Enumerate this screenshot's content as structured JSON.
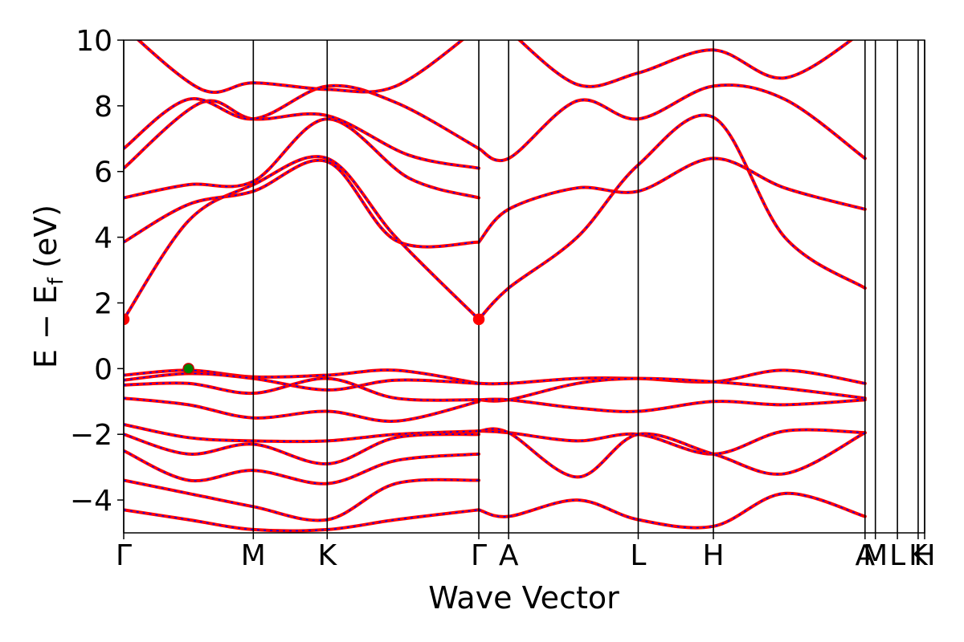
{
  "chart_data": {
    "type": "line",
    "xlabel": "Wave Vector",
    "ylabel": "E − E_f (eV)",
    "ylabel_main": "E − E",
    "ylabel_sub": "f",
    "ylabel_unit": " (eV)",
    "ylim": [
      -5,
      10
    ],
    "yticks": [
      -4,
      -2,
      0,
      2,
      4,
      6,
      8,
      10
    ],
    "ytick_labels": [
      "−4",
      "−2",
      "0",
      "2",
      "4",
      "6",
      "8",
      "10"
    ],
    "xlim": [
      0,
      6.18
    ],
    "kpoints": [
      {
        "label": "Γ",
        "x": 0.0
      },
      {
        "label": "M",
        "x": 1.0
      },
      {
        "label": "K",
        "x": 1.57
      },
      {
        "label": "Γ",
        "x": 2.74
      },
      {
        "label": "A",
        "x": 2.97
      },
      {
        "label": "L",
        "x": 3.97
      },
      {
        "label": "H",
        "x": 4.55
      },
      {
        "label": "A",
        "x": 5.72
      },
      {
        "label": "M",
        "x": 5.8
      },
      {
        "label": "L",
        "x": 5.97
      },
      {
        "label": "K",
        "x": 6.13
      },
      {
        "label": "H",
        "x": 6.18
      }
    ],
    "colors": {
      "band": "#ff0000",
      "band_dash": "#0000ff",
      "vline": "#000000",
      "cbm": "#ff0000",
      "vbm": "#008000"
    },
    "markers": [
      {
        "name": "cbm",
        "x": 0.0,
        "y": 1.5,
        "color": "#ff0000"
      },
      {
        "name": "cbm",
        "x": 2.74,
        "y": 1.5,
        "color": "#ff0000"
      },
      {
        "name": "vbm",
        "x": 0.5,
        "y": 0.0,
        "color": "#008000"
      }
    ],
    "series": [
      {
        "x": [
          0,
          0.5,
          1.0,
          1.57,
          2.1,
          2.74
        ],
        "y": [
          1.5,
          4.5,
          5.6,
          6.4,
          4.0,
          1.5
        ]
      },
      {
        "x": [
          0,
          0.5,
          1.0,
          1.57,
          2.1,
          2.74
        ],
        "y": [
          3.85,
          5.0,
          5.4,
          6.3,
          3.9,
          3.85
        ]
      },
      {
        "x": [
          0,
          0.5,
          1.0,
          1.57,
          2.2,
          2.74
        ],
        "y": [
          5.2,
          5.6,
          5.7,
          7.6,
          5.8,
          5.2
        ]
      },
      {
        "x": [
          0,
          0.6,
          1.0,
          1.57,
          2.2,
          2.74
        ],
        "y": [
          6.1,
          8.1,
          7.6,
          7.7,
          6.5,
          6.1
        ]
      },
      {
        "x": [
          0,
          0.5,
          1.0,
          1.57,
          2.1,
          2.74
        ],
        "y": [
          6.7,
          8.2,
          7.6,
          8.6,
          8.1,
          6.7
        ]
      },
      {
        "x": [
          0,
          0.6,
          1.0,
          1.57,
          2.1,
          2.74
        ],
        "y": [
          10.4,
          8.5,
          8.7,
          8.5,
          8.6,
          10.4
        ]
      },
      {
        "x": [
          0,
          0.5,
          1.0,
          1.57,
          2.1,
          2.74
        ],
        "y": [
          -0.2,
          -0.05,
          -0.25,
          -0.2,
          -0.05,
          -0.45
        ]
      },
      {
        "x": [
          0,
          0.5,
          1.0,
          1.57,
          2.1,
          2.74
        ],
        "y": [
          -0.35,
          -0.15,
          -0.3,
          -0.65,
          -0.35,
          -0.45
        ]
      },
      {
        "x": [
          0,
          0.5,
          1.0,
          1.57,
          2.1,
          2.74
        ],
        "y": [
          -0.5,
          -0.45,
          -0.75,
          -0.3,
          -0.9,
          -0.95
        ]
      },
      {
        "x": [
          0,
          0.5,
          1.0,
          1.57,
          2.1,
          2.74
        ],
        "y": [
          -0.9,
          -1.1,
          -1.5,
          -1.3,
          -1.6,
          -1.0
        ]
      },
      {
        "x": [
          0,
          0.5,
          1.0,
          1.57,
          2.1,
          2.74
        ],
        "y": [
          -1.7,
          -2.1,
          -2.2,
          -2.2,
          -2.0,
          -1.9
        ]
      },
      {
        "x": [
          0,
          0.5,
          1.0,
          1.57,
          2.1,
          2.74
        ],
        "y": [
          -2.0,
          -2.6,
          -2.3,
          -2.9,
          -2.1,
          -2.0
        ]
      },
      {
        "x": [
          0,
          0.5,
          1.0,
          1.57,
          2.1,
          2.74
        ],
        "y": [
          -2.5,
          -3.4,
          -3.1,
          -3.5,
          -2.8,
          -2.6
        ]
      },
      {
        "x": [
          0,
          0.5,
          1.0,
          1.57,
          2.1,
          2.74
        ],
        "y": [
          -3.4,
          -3.8,
          -4.2,
          -4.6,
          -3.5,
          -3.4
        ]
      },
      {
        "x": [
          0,
          0.5,
          1.0,
          1.57,
          2.1,
          2.74
        ],
        "y": [
          -4.3,
          -4.6,
          -4.9,
          -4.9,
          -4.6,
          -4.3
        ]
      },
      {
        "x": [
          2.74,
          2.97,
          3.5,
          3.97,
          4.55,
          5.1,
          5.72
        ],
        "y": [
          3.85,
          4.85,
          5.5,
          5.4,
          6.4,
          5.5,
          4.85
        ]
      },
      {
        "x": [
          2.74,
          2.97,
          3.5,
          3.97,
          4.55,
          5.1,
          5.72
        ],
        "y": [
          1.5,
          2.45,
          4.0,
          6.2,
          7.65,
          4.0,
          2.45
        ]
      },
      {
        "x": [
          2.74,
          2.97,
          3.5,
          3.97,
          4.55,
          5.1,
          5.72
        ],
        "y": [
          6.7,
          6.4,
          8.15,
          7.6,
          8.6,
          8.2,
          6.4
        ]
      },
      {
        "x": [
          2.97,
          3.5,
          3.97,
          4.55,
          5.1,
          5.72
        ],
        "y": [
          10.3,
          8.65,
          9.0,
          9.7,
          8.85,
          10.3
        ]
      },
      {
        "x": [
          2.74,
          2.97,
          3.5,
          3.97,
          4.55,
          5.1,
          5.72
        ],
        "y": [
          -0.45,
          -0.45,
          -0.3,
          -0.3,
          -0.4,
          -0.05,
          -0.45
        ]
      },
      {
        "x": [
          2.74,
          2.97,
          3.5,
          3.97,
          4.55,
          5.1,
          5.72
        ],
        "y": [
          -0.95,
          -0.95,
          -0.45,
          -0.3,
          -0.4,
          -0.6,
          -0.9
        ]
      },
      {
        "x": [
          2.74,
          2.97,
          3.5,
          3.97,
          4.55,
          5.1,
          5.72
        ],
        "y": [
          -0.95,
          -0.95,
          -1.2,
          -1.3,
          -1.0,
          -1.1,
          -0.95
        ]
      },
      {
        "x": [
          2.74,
          2.97,
          3.5,
          3.97,
          4.55,
          5.1,
          5.72
        ],
        "y": [
          -1.9,
          -1.95,
          -2.2,
          -2.0,
          -2.6,
          -1.9,
          -1.95
        ]
      },
      {
        "x": [
          2.74,
          2.97,
          3.5,
          3.97,
          4.55,
          5.1,
          5.72
        ],
        "y": [
          -1.9,
          -1.95,
          -3.3,
          -2.0,
          -2.6,
          -3.2,
          -1.95
        ]
      },
      {
        "x": [
          2.74,
          2.97,
          3.5,
          3.97,
          4.55,
          5.1,
          5.72
        ],
        "y": [
          -4.3,
          -4.5,
          -4.0,
          -4.6,
          -4.8,
          -3.8,
          -4.5
        ]
      }
    ]
  }
}
